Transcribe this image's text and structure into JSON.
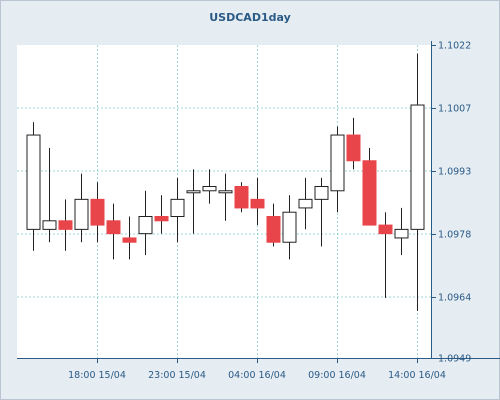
{
  "chart_data": {
    "type": "candlestick",
    "title": "USDCAD1day",
    "x_tick_labels": [
      "18:00 15/04",
      "23:00 15/04",
      "04:00 16/04",
      "09:00 16/04",
      "14:00 16/04"
    ],
    "y_tick_labels": [
      "1.1022",
      "1.1007",
      "1.0993",
      "1.0978",
      "1.0964",
      "1.0949"
    ],
    "ylim": [
      1.0949,
      1.1022
    ],
    "grid": true,
    "colors": {
      "up": "#ffffff",
      "down": "#e8454a",
      "outline": "#222222",
      "grid": "#9ed6d6",
      "axis": "#2b5a86",
      "plot_bg": "#ffffff",
      "bg": "#e5edf3"
    },
    "candles": [
      {
        "open": 1.0979,
        "high": 1.1004,
        "low": 1.0974,
        "close": 1.1001
      },
      {
        "open": 1.0979,
        "high": 1.0998,
        "low": 1.0976,
        "close": 1.0981
      },
      {
        "open": 1.0981,
        "high": 1.0986,
        "low": 1.0974,
        "close": 1.0979
      },
      {
        "open": 1.0979,
        "high": 1.0992,
        "low": 1.0976,
        "close": 1.0986
      },
      {
        "open": 1.0986,
        "high": 1.099,
        "low": 1.0976,
        "close": 1.098
      },
      {
        "open": 1.0981,
        "high": 1.0985,
        "low": 1.0972,
        "close": 1.0978
      },
      {
        "open": 1.0977,
        "high": 1.0982,
        "low": 1.0972,
        "close": 1.0976
      },
      {
        "open": 1.0978,
        "high": 1.0988,
        "low": 1.0973,
        "close": 1.0982
      },
      {
        "open": 1.0982,
        "high": 1.0987,
        "low": 1.0978,
        "close": 1.0981
      },
      {
        "open": 1.0982,
        "high": 1.0991,
        "low": 1.0976,
        "close": 1.0986
      },
      {
        "open": 1.0988,
        "high": 1.0993,
        "low": 1.0978,
        "close": 1.0988
      },
      {
        "open": 1.0988,
        "high": 1.0993,
        "low": 1.0985,
        "close": 1.0989
      },
      {
        "open": 1.0988,
        "high": 1.0992,
        "low": 1.0981,
        "close": 1.0988
      },
      {
        "open": 1.0989,
        "high": 1.099,
        "low": 1.0983,
        "close": 1.0984
      },
      {
        "open": 1.0986,
        "high": 1.0991,
        "low": 1.098,
        "close": 1.0984
      },
      {
        "open": 1.0982,
        "high": 1.0985,
        "low": 1.0975,
        "close": 1.0976
      },
      {
        "open": 1.0976,
        "high": 1.0987,
        "low": 1.0972,
        "close": 1.0983
      },
      {
        "open": 1.0984,
        "high": 1.0991,
        "low": 1.0979,
        "close": 1.0986
      },
      {
        "open": 1.0986,
        "high": 1.0991,
        "low": 1.0975,
        "close": 1.0989
      },
      {
        "open": 1.0988,
        "high": 1.1003,
        "low": 1.0983,
        "close": 1.1001
      },
      {
        "open": 1.1001,
        "high": 1.1005,
        "low": 1.0993,
        "close": 1.0995
      },
      {
        "open": 1.0995,
        "high": 1.0998,
        "low": 1.098,
        "close": 1.098
      },
      {
        "open": 1.098,
        "high": 1.0983,
        "low": 1.0963,
        "close": 1.0978
      },
      {
        "open": 1.0977,
        "high": 1.0984,
        "low": 1.0973,
        "close": 1.0979
      },
      {
        "open": 1.0979,
        "high": 1.102,
        "low": 1.096,
        "close": 1.1008
      }
    ]
  }
}
